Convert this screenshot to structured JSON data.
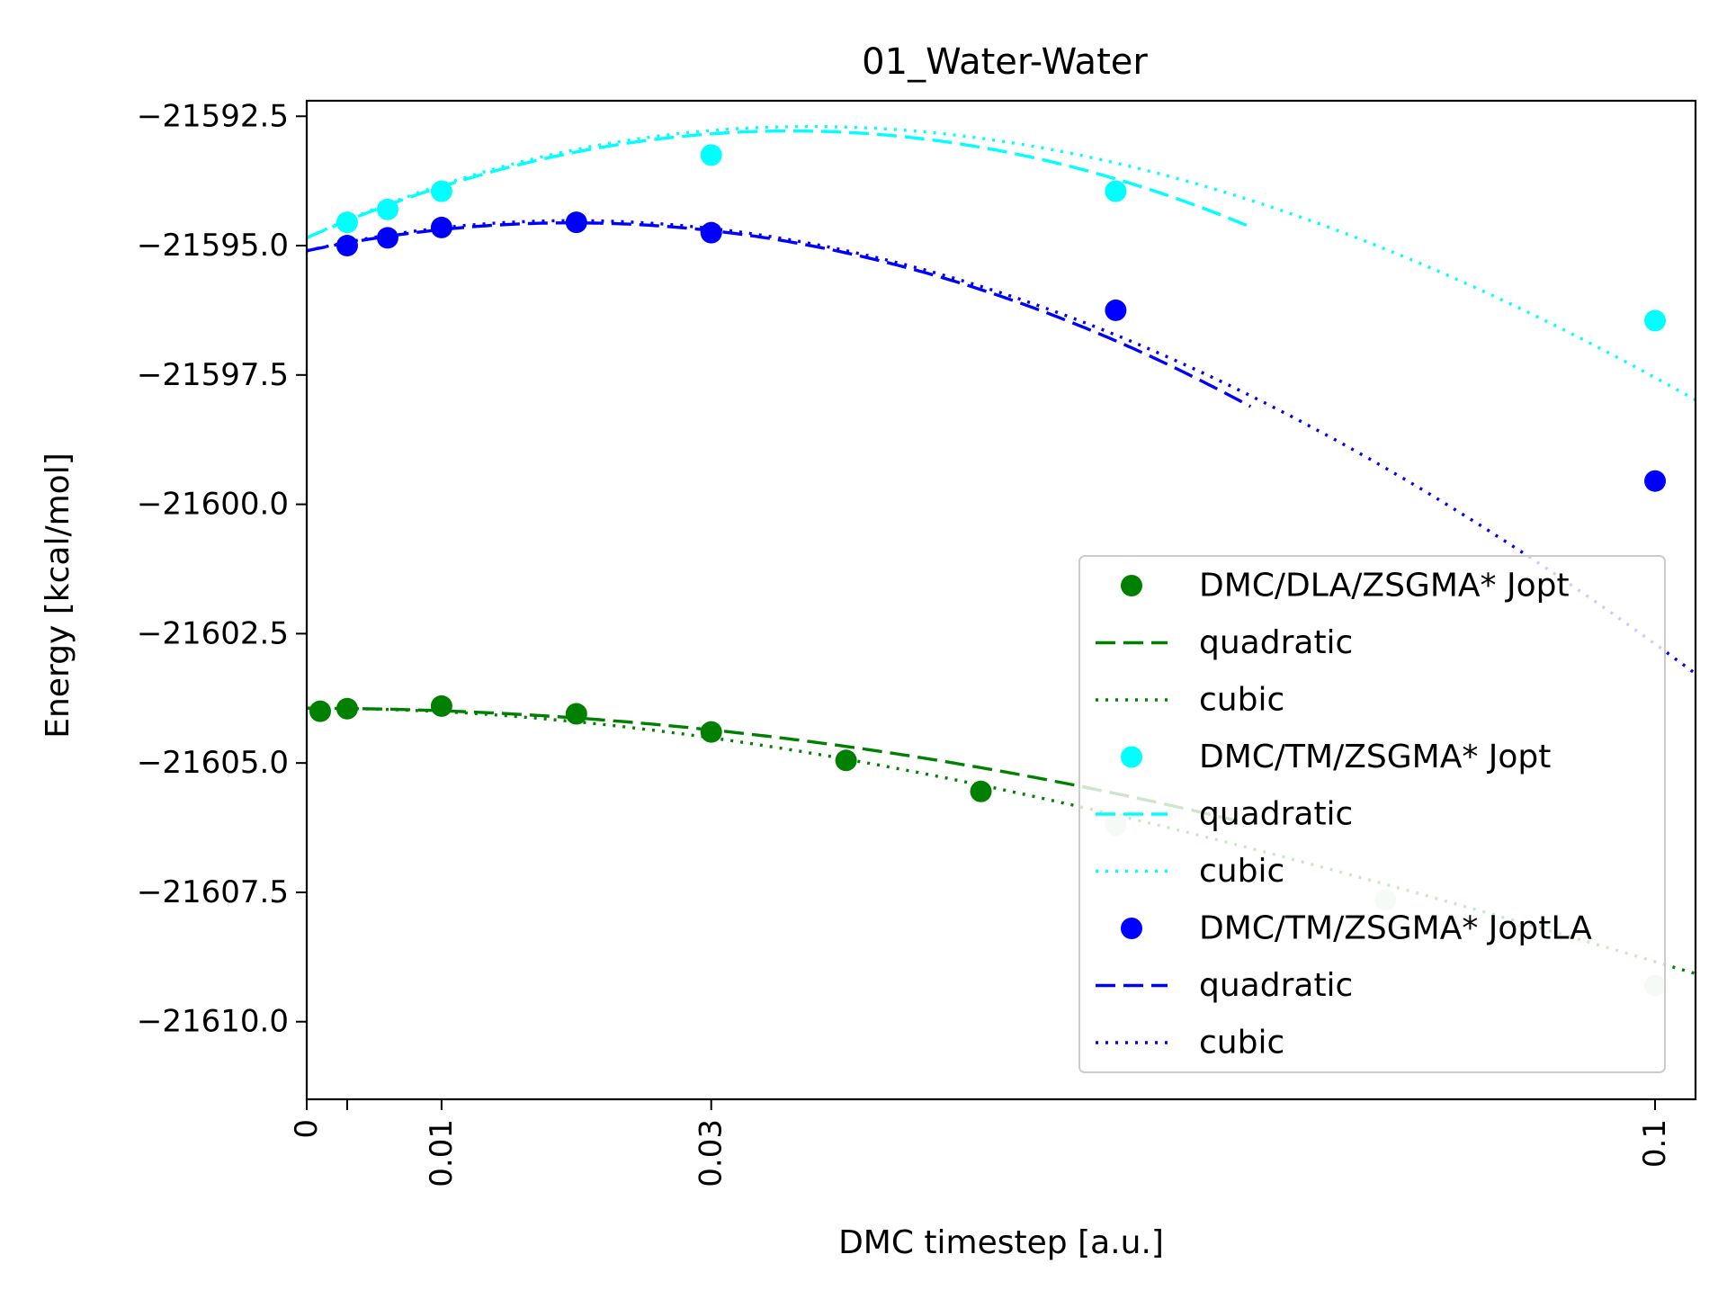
{
  "chart_data": {
    "type": "scatter",
    "title": "01_Water-Water",
    "xlabel": "DMC timestep [a.u.]",
    "ylabel": "Energy [kcal/mol]",
    "xlim": [
      0,
      0.103
    ],
    "ylim": [
      -21611.5,
      -21592.2
    ],
    "xticks": [
      {
        "value": 0,
        "label": "0"
      },
      {
        "value": 0.003,
        "label": ""
      },
      {
        "value": 0.01,
        "label": "0.01"
      },
      {
        "value": 0.03,
        "label": "0.03"
      },
      {
        "value": 0.1,
        "label": "0.1"
      }
    ],
    "yticks": [
      {
        "value": -21592.5,
        "label": "−21592.5"
      },
      {
        "value": -21595.0,
        "label": "−21595.0"
      },
      {
        "value": -21597.5,
        "label": "−21597.5"
      },
      {
        "value": -21600.0,
        "label": "−21600.0"
      },
      {
        "value": -21602.5,
        "label": "−21602.5"
      },
      {
        "value": -21605.0,
        "label": "−21605.0"
      },
      {
        "value": -21607.5,
        "label": "−21607.5"
      },
      {
        "value": -21610.0,
        "label": "−21610.0"
      }
    ],
    "grid": false,
    "legend_position": "lower right",
    "series": [
      {
        "name": "DMC/DLA/ZSGMA* Jopt",
        "color": "#008000",
        "fit_color": "#008000",
        "faded_color": "#cfe6cf",
        "x": [
          0.001,
          0.003,
          0.01,
          0.02,
          0.03,
          0.04,
          0.05,
          0.06,
          0.08,
          0.1
        ],
        "y": [
          -21604.0,
          -21603.95,
          -21603.9,
          -21604.05,
          -21604.4,
          -21604.95,
          -21605.55,
          -21606.2,
          -21607.65,
          -21609.3
        ],
        "faded": [
          false,
          false,
          false,
          false,
          false,
          false,
          false,
          true,
          true,
          true
        ],
        "quadratic": {
          "x_range": [
            0,
            0.07
          ],
          "coef": [
            -21603.94,
            -0.5,
            -450
          ]
        },
        "cubic": {
          "x_range": [
            0,
            0.103
          ],
          "coef": [
            -21603.94,
            0.0,
            -700,
            2100
          ]
        },
        "quadratic_label": "quadratic",
        "cubic_label": "cubic"
      },
      {
        "name": "DMC/TM/ZSGMA* Jopt",
        "color": "#00ffff",
        "fit_color": "#00ffff",
        "x": [
          0.003,
          0.006,
          0.01,
          0.03,
          0.06,
          0.1
        ],
        "y": [
          -21594.55,
          -21594.3,
          -21593.95,
          -21593.25,
          -21593.95,
          -21596.45
        ],
        "quadratic": {
          "x_range": [
            0,
            0.07
          ],
          "coef": [
            -21594.85,
            115,
            -1600
          ]
        },
        "cubic": {
          "x_range": [
            0,
            0.103
          ],
          "coef": [
            -21594.85,
            120,
            -1790,
            3200
          ]
        },
        "quadratic_label": "quadratic",
        "cubic_label": "cubic"
      },
      {
        "name": "DMC/TM/ZSGMA* JoptLA",
        "color": "#0000ff",
        "fit_color": "#0000ff",
        "x": [
          0.003,
          0.006,
          0.01,
          0.02,
          0.03,
          0.06,
          0.1
        ],
        "y": [
          -21595.0,
          -21594.85,
          -21594.65,
          -21594.55,
          -21594.75,
          -21596.25,
          -21599.55
        ],
        "quadratic": {
          "x_range": [
            0,
            0.07
          ],
          "coef": [
            -21595.1,
            55,
            -1400
          ]
        },
        "cubic": {
          "x_range": [
            0,
            0.103
          ],
          "coef": [
            -21595.1,
            60,
            -1590,
            2300
          ]
        },
        "quadratic_label": "quadratic",
        "cubic_label": "cubic"
      }
    ]
  }
}
